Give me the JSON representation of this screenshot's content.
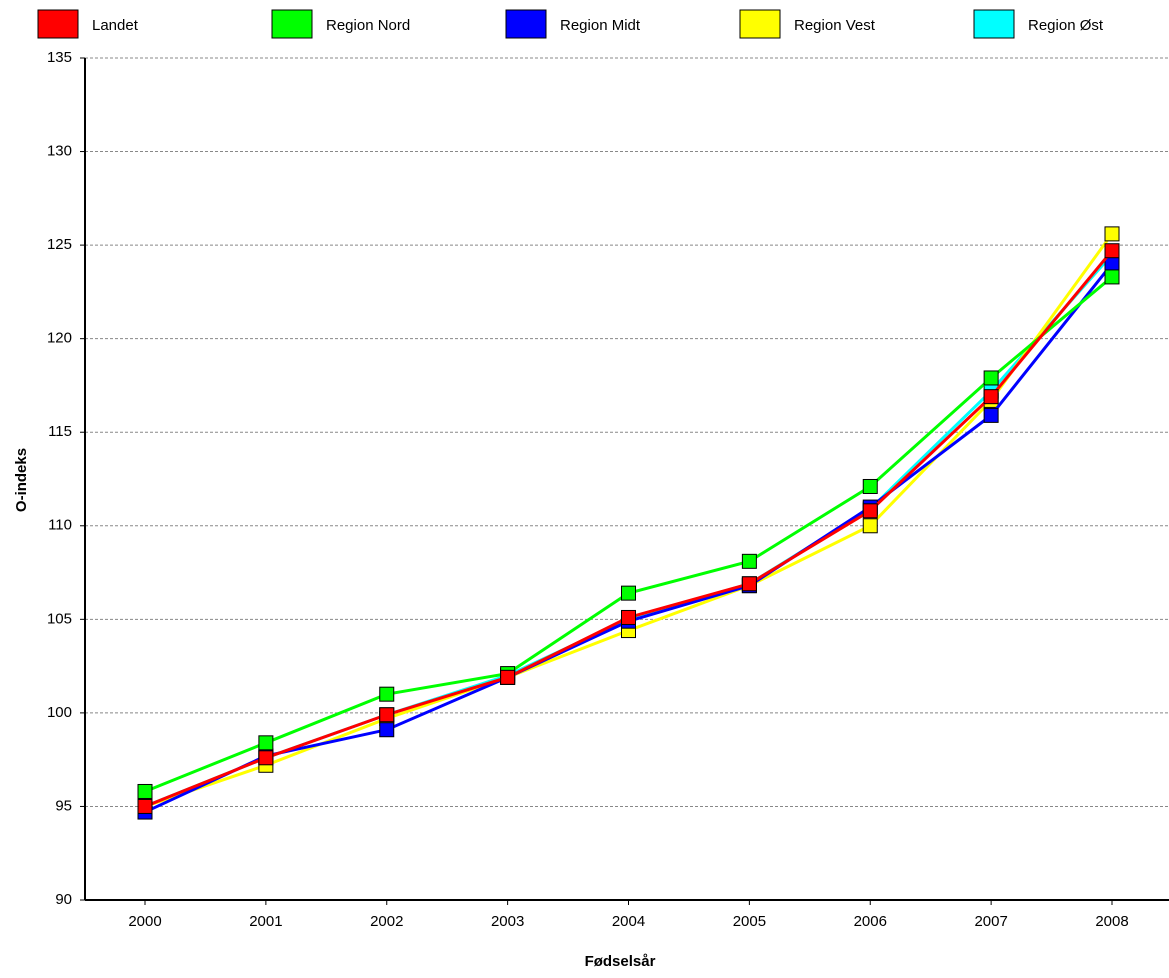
{
  "chart_data": {
    "type": "line",
    "x_label": "Fødselsår",
    "y_label": "O-indeks",
    "categories": [
      "2000",
      "2001",
      "2002",
      "2003",
      "2004",
      "2005",
      "2006",
      "2007",
      "2008"
    ],
    "series": [
      {
        "name": "Landet",
        "color": "#ff0000",
        "values": [
          95.0,
          97.6,
          99.9,
          101.9,
          105.1,
          106.9,
          110.8,
          116.9,
          124.7
        ]
      },
      {
        "name": "Region Nord",
        "color": "#00ff00",
        "values": [
          95.8,
          98.4,
          101.0,
          102.1,
          106.4,
          108.1,
          112.1,
          117.9,
          123.3
        ]
      },
      {
        "name": "Region Midt",
        "color": "#0000ff",
        "values": [
          94.7,
          97.7,
          99.1,
          101.9,
          104.9,
          106.8,
          111.0,
          115.9,
          124.0
        ]
      },
      {
        "name": "Region Vest",
        "color": "#ffff00",
        "values": [
          95.0,
          97.2,
          99.7,
          101.9,
          104.4,
          106.8,
          110.0,
          116.7,
          125.6
        ]
      },
      {
        "name": "Region Øst",
        "color": "#00ffff",
        "values": [
          95.0,
          97.6,
          99.9,
          102.0,
          105.0,
          106.9,
          110.9,
          117.2,
          124.5
        ]
      }
    ],
    "ylim": [
      90,
      135
    ],
    "yticks": [
      90,
      95,
      100,
      105,
      110,
      115,
      120,
      125,
      130,
      135
    ],
    "grid": true
  }
}
